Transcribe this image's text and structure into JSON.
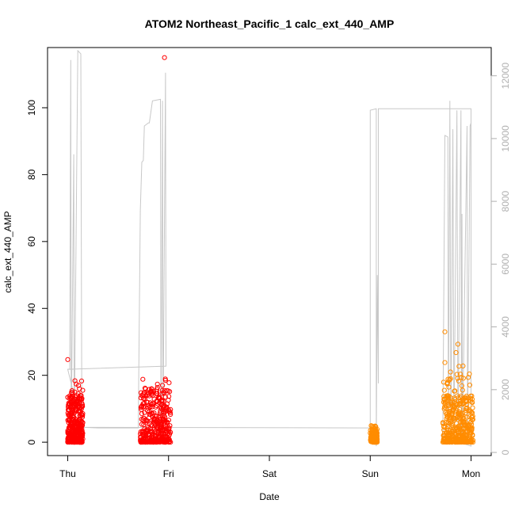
{
  "chart_data": {
    "type": "scatter",
    "title": "ATOM2 Northeast_Pacific_1 calc_ext_440_AMP",
    "xlabel": "Date",
    "ylabel": "calc_ext_440_AMP",
    "x_ticks": [
      "Thu",
      "Fri",
      "Sat",
      "Sun",
      "Mon"
    ],
    "y_ticks": [
      0,
      20,
      40,
      60,
      80,
      100
    ],
    "y_right_ticks": [
      0,
      2000,
      4000,
      6000,
      8000,
      10000,
      12000
    ],
    "xlim_days": [
      -0.2,
      4.2
    ],
    "ylim": [
      -4,
      118
    ],
    "y_right_lim": [
      -100,
      12900
    ],
    "grid": false,
    "colors": {
      "red_series": "#ff0000",
      "orange_series": "#ff8c00",
      "secondary_line": "#c8c8c8",
      "right_axis": "#b0b0b0"
    },
    "series": [
      {
        "color": "red",
        "clusters": [
          {
            "x_start": 0.0,
            "x_end": 0.15,
            "y_max": 19,
            "y_dense_max": 14,
            "n": 380,
            "outliers": [
              {
                "x": 0.0,
                "y": 24.7
              },
              {
                "x": 0.07,
                "y": 15.0
              },
              {
                "x": 0.09,
                "y": 12.0
              },
              {
                "x": 0.12,
                "y": 8.0
              }
            ]
          },
          {
            "x_start": 0.72,
            "x_end": 1.02,
            "y_max": 19,
            "y_dense_max": 16,
            "n": 360,
            "outliers": [
              {
                "x": 0.96,
                "y": 115.0
              },
              {
                "x": 0.97,
                "y": 18.5
              },
              {
                "x": 0.94,
                "y": 17.0
              }
            ]
          }
        ]
      },
      {
        "color": "orange",
        "clusters": [
          {
            "x_start": 3.0,
            "x_end": 3.07,
            "y_max": 5,
            "y_dense_max": 4,
            "n": 140,
            "outliers": []
          },
          {
            "x_start": 3.72,
            "x_end": 4.02,
            "y_max": 21,
            "y_dense_max": 14,
            "n": 420,
            "outliers": [
              {
                "x": 3.74,
                "y": 33.0
              },
              {
                "x": 3.74,
                "y": 23.8
              },
              {
                "x": 3.87,
                "y": 29.3
              },
              {
                "x": 3.85,
                "y": 26.8
              },
              {
                "x": 3.88,
                "y": 22.7
              },
              {
                "x": 3.92,
                "y": 22.8
              },
              {
                "x": 3.73,
                "y": 13.7
              }
            ]
          }
        ]
      }
    ],
    "secondary_line": {
      "axis": "right",
      "points": [
        [
          0.0,
          2650
        ],
        [
          0.02,
          2660
        ],
        [
          0.03,
          12500
        ],
        [
          0.035,
          400
        ],
        [
          0.06,
          9500
        ],
        [
          0.065,
          400
        ],
        [
          0.1,
          12800
        ],
        [
          0.13,
          12700
        ],
        [
          0.14,
          800
        ],
        [
          0.3,
          780
        ],
        [
          0.7,
          780
        ],
        [
          0.72,
          7700
        ],
        [
          0.735,
          9250
        ],
        [
          0.75,
          9300
        ],
        [
          0.76,
          10400
        ],
        [
          0.8,
          10500
        ],
        [
          0.81,
          10500
        ],
        [
          0.84,
          11200
        ],
        [
          0.92,
          11250
        ],
        [
          0.925,
          500
        ],
        [
          0.94,
          11200
        ],
        [
          0.945,
          500
        ],
        [
          0.97,
          12100
        ],
        [
          0.975,
          2750
        ],
        [
          0.0,
          2650
        ],
        [
          0.14,
          800
        ],
        [
          3.0,
          780
        ],
        [
          3.0,
          10900
        ],
        [
          3.06,
          10950
        ],
        [
          3.06,
          200
        ],
        [
          3.07,
          5650
        ],
        [
          3.08,
          2200
        ],
        [
          3.08,
          10950
        ],
        [
          4.0,
          10950
        ],
        [
          4.0,
          200
        ],
        [
          3.72,
          500
        ],
        [
          3.74,
          10100
        ],
        [
          3.77,
          10050
        ],
        [
          3.775,
          400
        ],
        [
          3.79,
          11200
        ],
        [
          3.8,
          400
        ],
        [
          3.82,
          10300
        ],
        [
          3.83,
          400
        ],
        [
          3.86,
          10900
        ],
        [
          3.87,
          400
        ],
        [
          3.9,
          10900
        ],
        [
          3.905,
          400
        ],
        [
          3.91,
          7600
        ],
        [
          3.915,
          400
        ],
        [
          3.96,
          10400
        ],
        [
          3.965,
          400
        ],
        [
          3.99,
          10400
        ],
        [
          4.0,
          10500
        ]
      ]
    }
  }
}
